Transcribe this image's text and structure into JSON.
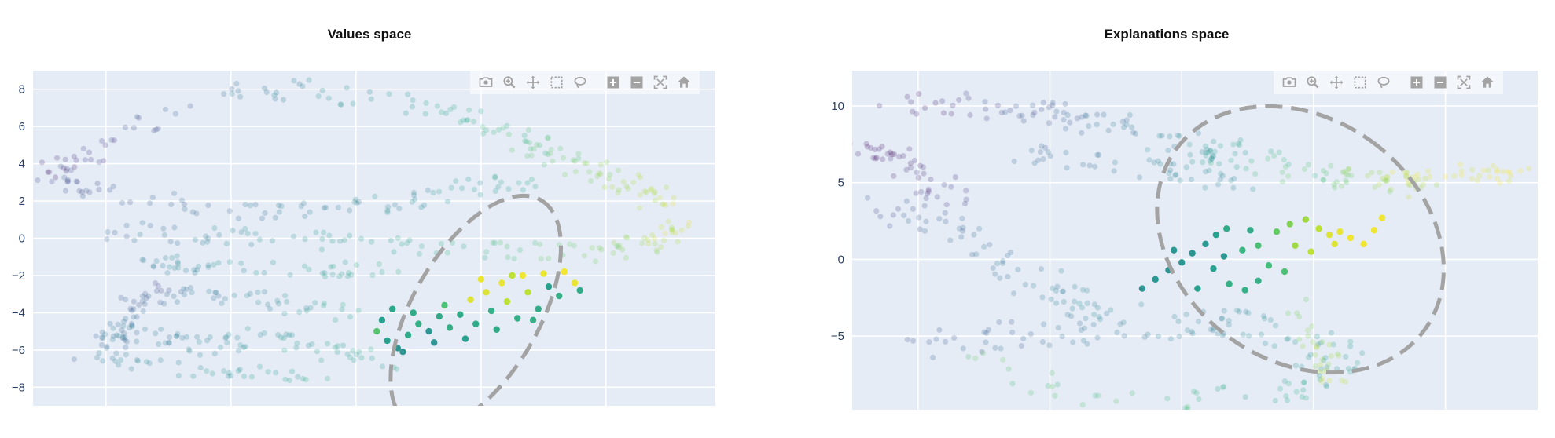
{
  "modebar": {
    "buttons": [
      "camera-icon",
      "zoom-icon",
      "pan-icon",
      "box-select-icon",
      "lasso-icon",
      "zoom-in-icon",
      "zoom-out-icon",
      "autoscale-icon",
      "reset-axes-icon"
    ],
    "icon_color": "#a3a3a3"
  },
  "chart_data": [
    {
      "type": "scatter",
      "title": "Values space",
      "xlabel": "",
      "ylabel": "",
      "xlim": [
        -4.4,
        8.7
      ],
      "ylim": [
        -9.0,
        9.0
      ],
      "y_ticks": [
        8,
        6,
        4,
        2,
        0,
        -2,
        -4,
        -6,
        -8
      ],
      "y_tick_labels": [
        "8",
        "6",
        "4",
        "2",
        "0",
        "−2",
        "−4",
        "−6",
        "−8"
      ],
      "x_gridlines": [
        -3,
        -0.6,
        1.8,
        4.2,
        6.6
      ],
      "grid": true,
      "colorscale": "viridis",
      "background_color": "#e5ecf6",
      "selection_ellipse": {
        "cx": 4.1,
        "cy": -4.0,
        "rx": 2.5,
        "ry": 3.4,
        "angle_deg": -60,
        "color": "#a3a3a3",
        "style": "dashed"
      },
      "highlighted": [
        {
          "x": 2.4,
          "y": -5.5,
          "c": 0.55
        },
        {
          "x": 2.6,
          "y": -5.9,
          "c": 0.5
        },
        {
          "x": 2.8,
          "y": -5.2,
          "c": 0.6
        },
        {
          "x": 3.0,
          "y": -4.6,
          "c": 0.62
        },
        {
          "x": 2.9,
          "y": -4.0,
          "c": 0.6
        },
        {
          "x": 2.3,
          "y": -4.4,
          "c": 0.55
        },
        {
          "x": 2.5,
          "y": -3.8,
          "c": 0.58
        },
        {
          "x": 3.2,
          "y": -5.0,
          "c": 0.5
        },
        {
          "x": 3.4,
          "y": -4.2,
          "c": 0.6
        },
        {
          "x": 3.6,
          "y": -4.8,
          "c": 0.62
        },
        {
          "x": 3.5,
          "y": -3.6,
          "c": 0.7
        },
        {
          "x": 3.8,
          "y": -4.1,
          "c": 0.6
        },
        {
          "x": 4.0,
          "y": -3.3,
          "c": 0.95
        },
        {
          "x": 4.1,
          "y": -4.6,
          "c": 0.6
        },
        {
          "x": 4.3,
          "y": -2.9,
          "c": 0.95
        },
        {
          "x": 4.4,
          "y": -3.9,
          "c": 0.62
        },
        {
          "x": 4.6,
          "y": -2.4,
          "c": 0.97
        },
        {
          "x": 4.7,
          "y": -3.4,
          "c": 0.9
        },
        {
          "x": 4.9,
          "y": -4.3,
          "c": 0.62
        },
        {
          "x": 5.0,
          "y": -2.0,
          "c": 0.98
        },
        {
          "x": 5.1,
          "y": -2.9,
          "c": 0.9
        },
        {
          "x": 5.3,
          "y": -3.8,
          "c": 0.6
        },
        {
          "x": 5.4,
          "y": -1.9,
          "c": 0.97
        },
        {
          "x": 5.5,
          "y": -2.6,
          "c": 0.55
        },
        {
          "x": 5.7,
          "y": -3.1,
          "c": 0.62
        },
        {
          "x": 5.8,
          "y": -1.8,
          "c": 0.98
        },
        {
          "x": 6.0,
          "y": -2.4,
          "c": 0.97
        },
        {
          "x": 6.1,
          "y": -2.8,
          "c": 0.6
        },
        {
          "x": 4.2,
          "y": -2.2,
          "c": 0.97
        },
        {
          "x": 4.8,
          "y": -2.0,
          "c": 0.9
        },
        {
          "x": 3.9,
          "y": -5.4,
          "c": 0.55
        },
        {
          "x": 3.3,
          "y": -5.6,
          "c": 0.5
        },
        {
          "x": 2.7,
          "y": -6.1,
          "c": 0.5
        },
        {
          "x": 2.2,
          "y": -5.0,
          "c": 0.72
        },
        {
          "x": 4.5,
          "y": -4.9,
          "c": 0.6
        },
        {
          "x": 5.2,
          "y": -4.4,
          "c": 0.62
        }
      ]
    },
    {
      "type": "scatter",
      "title": "Explanations space",
      "xlabel": "",
      "ylabel": "",
      "xlim": [
        -12.5,
        13.5
      ],
      "ylim": [
        -9.8,
        12.3
      ],
      "y_ticks": [
        10,
        5,
        0,
        -5
      ],
      "y_tick_labels": [
        "10",
        "5",
        "0",
        "−5"
      ],
      "x_gridlines": [
        -10,
        -5,
        0,
        5,
        10
      ],
      "grid": true,
      "colorscale": "viridis",
      "background_color": "#e5ecf6",
      "selection_ellipse": {
        "cx": 4.5,
        "cy": 1.3,
        "rx": 4.6,
        "ry": 10.0,
        "angle_deg": -54,
        "color": "#a3a3a3",
        "style": "dashed"
      },
      "highlighted": [
        {
          "x": -1.5,
          "y": -1.9,
          "c": 0.5
        },
        {
          "x": -1.0,
          "y": -1.3,
          "c": 0.5
        },
        {
          "x": -0.5,
          "y": -0.7,
          "c": 0.5
        },
        {
          "x": 0.0,
          "y": -0.2,
          "c": 0.5
        },
        {
          "x": 0.4,
          "y": 0.4,
          "c": 0.5
        },
        {
          "x": 0.9,
          "y": 1.0,
          "c": 0.52
        },
        {
          "x": 1.3,
          "y": 1.6,
          "c": 0.55
        },
        {
          "x": 1.7,
          "y": 2.0,
          "c": 0.6
        },
        {
          "x": 1.2,
          "y": -0.6,
          "c": 0.55
        },
        {
          "x": 1.8,
          "y": -1.6,
          "c": 0.62
        },
        {
          "x": 2.4,
          "y": -2.0,
          "c": 0.62
        },
        {
          "x": 2.9,
          "y": -1.4,
          "c": 0.62
        },
        {
          "x": 2.3,
          "y": 0.6,
          "c": 0.65
        },
        {
          "x": 2.9,
          "y": 0.9,
          "c": 0.7
        },
        {
          "x": 3.3,
          "y": -0.4,
          "c": 0.68
        },
        {
          "x": 3.6,
          "y": 1.8,
          "c": 0.75
        },
        {
          "x": 4.1,
          "y": 2.3,
          "c": 0.8
        },
        {
          "x": 4.7,
          "y": 2.6,
          "c": 0.85
        },
        {
          "x": 5.2,
          "y": 2.0,
          "c": 0.9
        },
        {
          "x": 5.6,
          "y": 1.6,
          "c": 0.95
        },
        {
          "x": 6.0,
          "y": 1.8,
          "c": 0.97
        },
        {
          "x": 6.4,
          "y": 1.4,
          "c": 0.98
        },
        {
          "x": 6.9,
          "y": 1.0,
          "c": 0.98
        },
        {
          "x": 7.3,
          "y": 1.9,
          "c": 0.98
        },
        {
          "x": 7.6,
          "y": 2.7,
          "c": 0.98
        },
        {
          "x": 5.8,
          "y": 1.0,
          "c": 0.95
        },
        {
          "x": 4.9,
          "y": 0.5,
          "c": 0.9
        },
        {
          "x": 4.3,
          "y": 0.9,
          "c": 0.85
        },
        {
          "x": 3.9,
          "y": -0.8,
          "c": 0.7
        },
        {
          "x": 0.6,
          "y": -1.9,
          "c": 0.55
        },
        {
          "x": 1.6,
          "y": 0.2,
          "c": 0.52
        },
        {
          "x": 2.6,
          "y": 1.9,
          "c": 0.6
        },
        {
          "x": -0.3,
          "y": 0.6,
          "c": 0.5
        }
      ]
    }
  ]
}
